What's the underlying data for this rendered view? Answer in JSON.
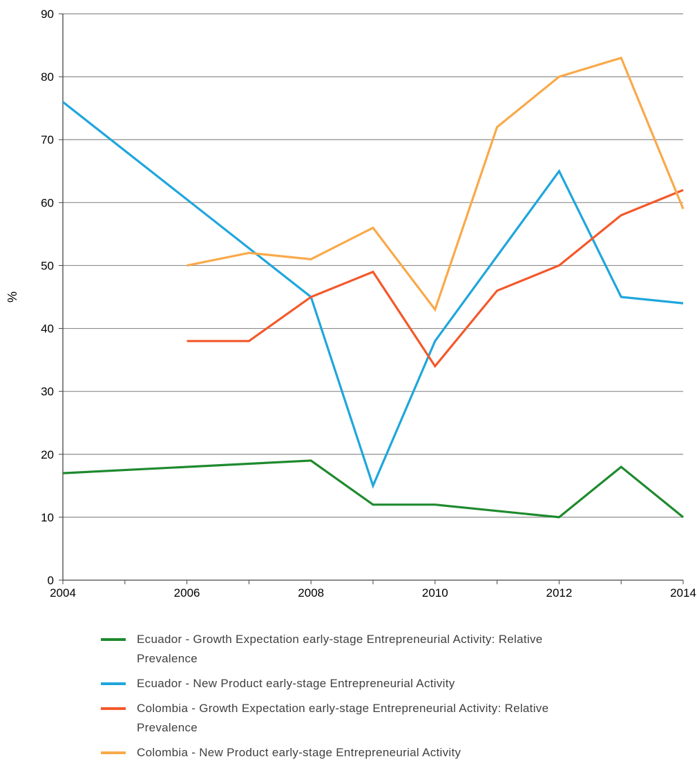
{
  "chart_data": {
    "type": "line",
    "title": "",
    "xlabel": "",
    "ylabel": "%",
    "xlim": [
      2004,
      2014
    ],
    "ylim": [
      0,
      90
    ],
    "x_ticks": [
      "2004",
      "2006",
      "2008",
      "2010",
      "2012",
      "2014"
    ],
    "y_ticks": [
      "0",
      "10",
      "20",
      "30",
      "40",
      "50",
      "60",
      "70",
      "80",
      "90"
    ],
    "grid": "horizontal",
    "legend_position": "bottom",
    "series": [
      {
        "name": "Ecuador - Growth Expectation early-stage Entrepreneurial Activity: Relative Prevalence",
        "color": "#1e8a2e",
        "points": [
          [
            2004,
            17
          ],
          [
            2008,
            19
          ],
          [
            2009,
            12
          ],
          [
            2010,
            12
          ],
          [
            2012,
            10
          ],
          [
            2013,
            18
          ],
          [
            2014,
            10
          ]
        ]
      },
      {
        "name": "Ecuador - New Product early-stage Entrepreneurial Activity",
        "color": "#1fa6dc",
        "points": [
          [
            2004,
            76
          ],
          [
            2008,
            45
          ],
          [
            2009,
            15
          ],
          [
            2010,
            38
          ],
          [
            2012,
            65
          ],
          [
            2013,
            45
          ],
          [
            2014,
            44
          ]
        ]
      },
      {
        "name": "Colombia - Growth Expectation early-stage Entrepreneurial Activity: Relative Prevalence",
        "color": "#f4582a",
        "points": [
          [
            2006,
            38
          ],
          [
            2007,
            38
          ],
          [
            2008,
            45
          ],
          [
            2009,
            49
          ],
          [
            2010,
            34
          ],
          [
            2011,
            46
          ],
          [
            2012,
            50
          ],
          [
            2013,
            58
          ],
          [
            2014,
            62
          ]
        ]
      },
      {
        "name": "Colombia - New Product early-stage Entrepreneurial Activity",
        "color": "#f9a94a",
        "points": [
          [
            2006,
            50
          ],
          [
            2007,
            52
          ],
          [
            2008,
            51
          ],
          [
            2009,
            56
          ],
          [
            2010,
            43
          ],
          [
            2011,
            72
          ],
          [
            2012,
            80
          ],
          [
            2013,
            83
          ],
          [
            2014,
            59
          ]
        ]
      }
    ]
  }
}
